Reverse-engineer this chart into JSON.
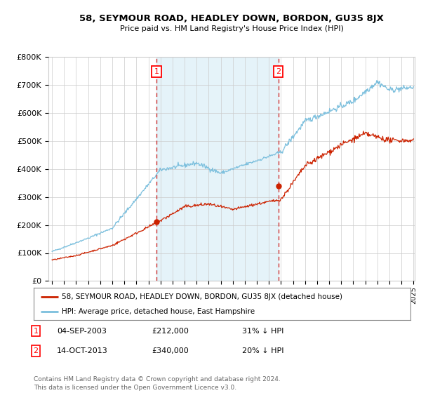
{
  "title": "58, SEYMOUR ROAD, HEADLEY DOWN, BORDON, GU35 8JX",
  "subtitle": "Price paid vs. HM Land Registry's House Price Index (HPI)",
  "ylabel_ticks": [
    "£0",
    "£100K",
    "£200K",
    "£300K",
    "£400K",
    "£500K",
    "£600K",
    "£700K",
    "£800K"
  ],
  "ylim": [
    0,
    800000
  ],
  "xlim_year_start": 1995,
  "xlim_year_end": 2025,
  "marker1": {
    "date_num": 2003.67,
    "value": 212000,
    "label": "1",
    "date_str": "04-SEP-2003",
    "price": "£212,000",
    "pct": "31% ↓ HPI"
  },
  "marker2": {
    "date_num": 2013.79,
    "value": 340000,
    "label": "2",
    "date_str": "14-OCT-2013",
    "price": "£340,000",
    "pct": "20% ↓ HPI"
  },
  "legend_line1": "58, SEYMOUR ROAD, HEADLEY DOWN, BORDON, GU35 8JX (detached house)",
  "legend_line2": "HPI: Average price, detached house, East Hampshire",
  "footer": "Contains HM Land Registry data © Crown copyright and database right 2024.\nThis data is licensed under the Open Government Licence v3.0.",
  "hpi_color": "#7bbfdd",
  "hpi_fill_color": "#daeef7",
  "price_color": "#cc2200",
  "dashed_line_color": "#cc3333",
  "background_color": "#ffffff",
  "grid_color": "#cccccc"
}
